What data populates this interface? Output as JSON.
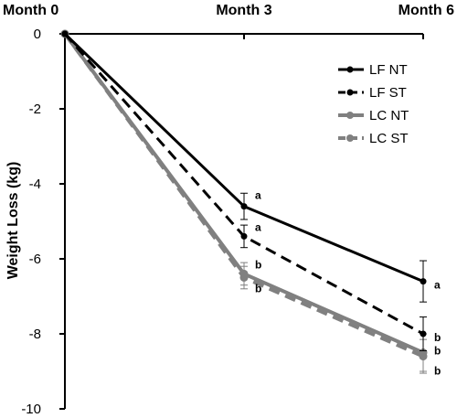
{
  "chart_data": {
    "type": "line",
    "categories": [
      "Month 0",
      "Month 3",
      "Month 6"
    ],
    "ylabel": "Weight Loss (kg)",
    "ylim": [
      -10,
      0
    ],
    "yticks": [
      0,
      -2,
      -4,
      -6,
      -8,
      -10
    ],
    "grid": false,
    "legend_position": "top-right",
    "series": [
      {
        "name": "LF NT",
        "values": [
          0,
          -4.6,
          -6.6
        ],
        "errors": [
          0,
          0.35,
          0.55
        ],
        "color": "#000000",
        "dash": "solid",
        "labels": [
          "",
          "a",
          "a"
        ]
      },
      {
        "name": "LF ST",
        "values": [
          0,
          -5.4,
          -8.0
        ],
        "errors": [
          0,
          0.3,
          0.45
        ],
        "color": "#000000",
        "dash": "dashed",
        "labels": [
          "",
          "a",
          "b"
        ]
      },
      {
        "name": "LC NT",
        "values": [
          0,
          -6.4,
          -8.5
        ],
        "errors": [
          0,
          0.3,
          0.5
        ],
        "color": "#808080",
        "dash": "solid",
        "labels": [
          "",
          "b",
          "b"
        ]
      },
      {
        "name": "LC ST",
        "values": [
          0,
          -6.5,
          -8.6
        ],
        "errors": [
          0,
          0.3,
          0.45
        ],
        "color": "#808080",
        "dash": "dashed",
        "labels": [
          "",
          "b",
          "b"
        ]
      }
    ]
  }
}
